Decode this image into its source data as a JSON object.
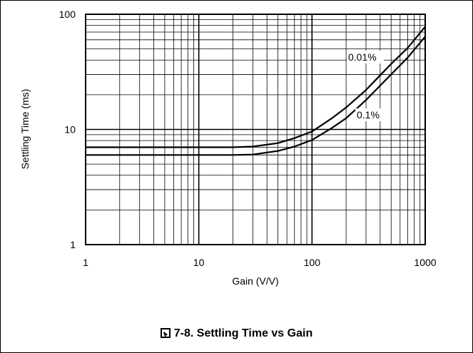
{
  "chart_data": {
    "type": "line",
    "title": "",
    "xlabel": "Gain (V/V)",
    "ylabel": "Settling Time (ms)",
    "x_scale": "log",
    "y_scale": "log",
    "xlim": [
      1,
      1000
    ],
    "ylim": [
      1,
      100
    ],
    "grid": true,
    "x_ticks": [
      "1",
      "10",
      "100",
      "1000"
    ],
    "y_ticks": [
      "1",
      "10",
      "100"
    ],
    "series": [
      {
        "name": "0.01%",
        "x": [
          1,
          5,
          10,
          20,
          30,
          50,
          70,
          100,
          150,
          200,
          300,
          500,
          700,
          1000
        ],
        "y": [
          7,
          7,
          7,
          7,
          7.1,
          7.6,
          8.4,
          9.6,
          12.5,
          15.5,
          22,
          37,
          51,
          78
        ]
      },
      {
        "name": "0.1%",
        "x": [
          1,
          5,
          10,
          20,
          30,
          50,
          70,
          100,
          150,
          200,
          300,
          500,
          700,
          1000
        ],
        "y": [
          6,
          6,
          6,
          6,
          6.05,
          6.5,
          7.1,
          8.1,
          10.3,
          12.5,
          18,
          30,
          42,
          64
        ]
      }
    ]
  },
  "caption": {
    "text": "7-8. Settling Time vs Gain"
  }
}
